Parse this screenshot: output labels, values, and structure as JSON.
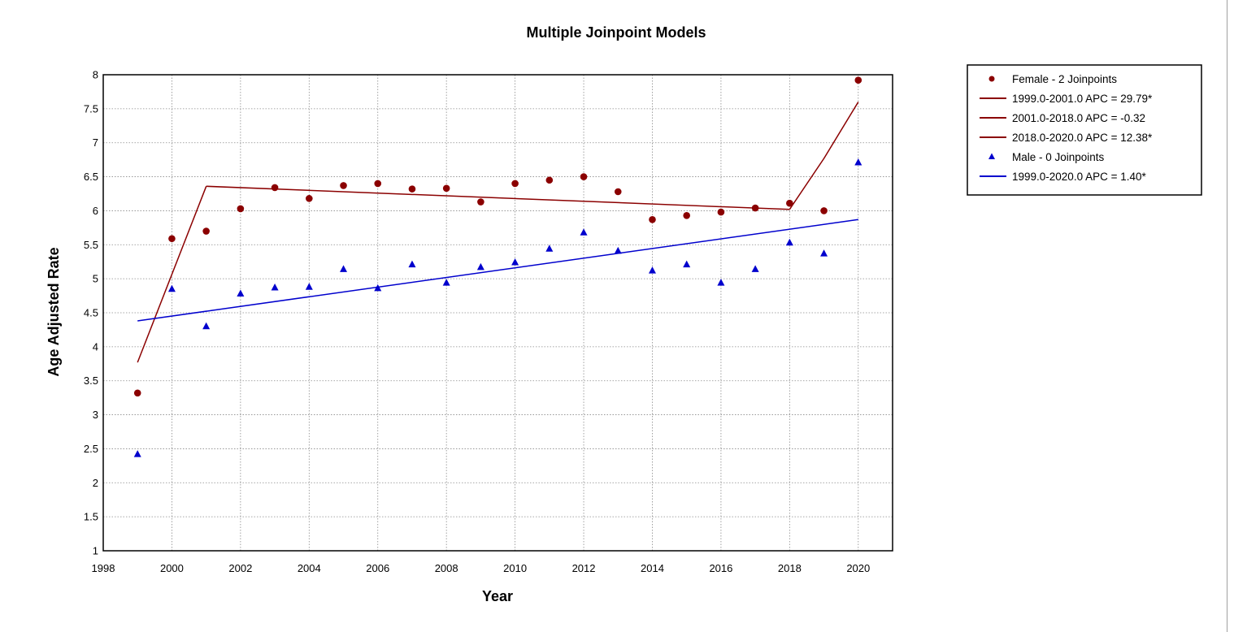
{
  "chart_data": {
    "type": "scatter",
    "title": "Multiple Joinpoint Models",
    "xlabel": "Year",
    "ylabel": "Age Adjusted Rate",
    "xlim": [
      1998,
      2021
    ],
    "ylim": [
      1,
      8
    ],
    "x_ticks": [
      "1998",
      "2000",
      "2002",
      "2004",
      "2006",
      "2008",
      "2010",
      "2012",
      "2014",
      "2016",
      "2018",
      "2020"
    ],
    "y_ticks": [
      "1",
      "1.5",
      "2",
      "2.5",
      "3",
      "3.5",
      "4",
      "4.5",
      "5",
      "5.5",
      "6",
      "6.5",
      "7",
      "7.5",
      "8"
    ],
    "grid": true,
    "legend_position": "right",
    "series": [
      {
        "name": "Female - 2 Joinpoints",
        "kind": "points",
        "marker": "circle",
        "color": "#8b0000",
        "x": [
          1999,
          2000,
          2001,
          2002,
          2003,
          2004,
          2005,
          2006,
          2007,
          2008,
          2009,
          2010,
          2011,
          2012,
          2013,
          2014,
          2015,
          2016,
          2017,
          2018,
          2019,
          2020
        ],
        "y": [
          3.32,
          5.59,
          5.7,
          6.03,
          6.34,
          6.18,
          6.37,
          6.4,
          6.32,
          6.33,
          6.13,
          6.4,
          6.45,
          6.5,
          6.28,
          5.87,
          5.93,
          5.98,
          6.04,
          6.11,
          6.0,
          7.92
        ]
      },
      {
        "name": "Male - 0 Joinpoints",
        "kind": "points",
        "marker": "triangle",
        "color": "#0000cd",
        "x": [
          1999,
          2000,
          2001,
          2002,
          2003,
          2004,
          2005,
          2006,
          2007,
          2008,
          2009,
          2010,
          2011,
          2012,
          2013,
          2014,
          2015,
          2016,
          2017,
          2018,
          2019,
          2020
        ],
        "y": [
          2.42,
          4.85,
          4.3,
          4.78,
          4.87,
          4.88,
          5.14,
          4.86,
          5.21,
          4.94,
          5.17,
          5.24,
          5.44,
          5.68,
          5.41,
          5.12,
          5.21,
          4.94,
          5.14,
          5.53,
          5.37,
          6.71
        ]
      }
    ],
    "fits": [
      {
        "label": "1999.0-2001.0 APC  = 29.79*",
        "color": "#8b0000",
        "x": [
          1999,
          2001
        ],
        "y": [
          3.77,
          6.36
        ]
      },
      {
        "label": "2001.0-2018.0 APC  = -0.32",
        "color": "#8b0000",
        "x": [
          2001,
          2018
        ],
        "y": [
          6.36,
          6.02
        ]
      },
      {
        "label": "2018.0-2020.0 APC  = 12.38*",
        "color": "#8b0000",
        "x": [
          2018,
          2019,
          2020
        ],
        "y": [
          6.02,
          6.77,
          7.6
        ]
      },
      {
        "label": "1999.0-2020.0 APC  = 1.40*",
        "color": "#0000cd",
        "x": [
          1999,
          2020
        ],
        "y": [
          4.38,
          5.87
        ]
      }
    ],
    "legend": [
      {
        "label": "Female - 2 Joinpoints",
        "symbol": "circle",
        "color": "#8b0000"
      },
      {
        "label": "1999.0-2001.0 APC  = 29.79*",
        "symbol": "line",
        "color": "#8b0000"
      },
      {
        "label": "2001.0-2018.0 APC  = -0.32",
        "symbol": "line",
        "color": "#8b0000"
      },
      {
        "label": "2018.0-2020.0 APC  = 12.38*",
        "symbol": "line",
        "color": "#8b0000"
      },
      {
        "label": "Male - 0 Joinpoints",
        "symbol": "triangle",
        "color": "#0000cd"
      },
      {
        "label": "1999.0-2020.0 APC  = 1.40*",
        "symbol": "line",
        "color": "#0000cd"
      }
    ]
  }
}
